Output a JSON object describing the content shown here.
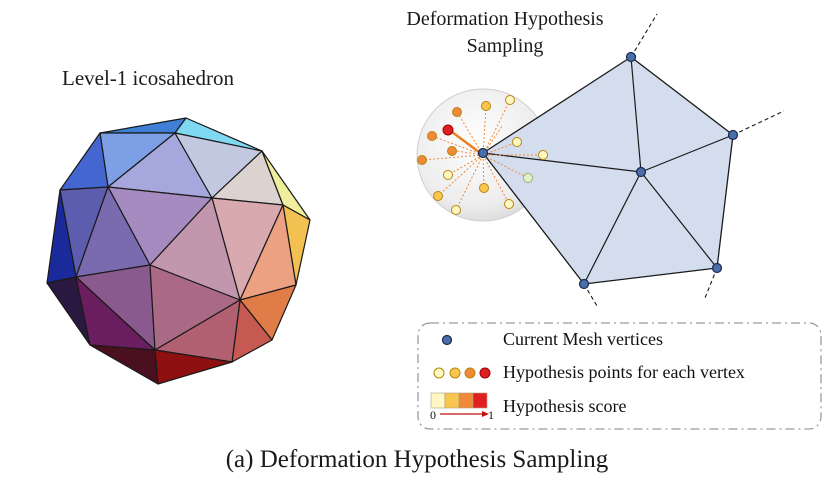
{
  "icosahedron": {
    "title": "Level-1 icosahedron"
  },
  "sampling": {
    "title_line1": "Deformation Hypothesis",
    "title_line2": "Sampling"
  },
  "legend": {
    "mesh_vertices": "Current Mesh vertices",
    "hypothesis_points": "Hypothesis points for each vertex",
    "hypothesis_score": "Hypothesis score",
    "score_min": "0",
    "score_max": "1"
  },
  "caption": "(a) Deformation Hypothesis Sampling",
  "colors": {
    "mesh_fill": "#d3ddee",
    "vertex_fill": "#4a6ea8",
    "score_scale": [
      "#fff8c4",
      "#f9c64f",
      "#f08a3a",
      "#e02020"
    ]
  }
}
